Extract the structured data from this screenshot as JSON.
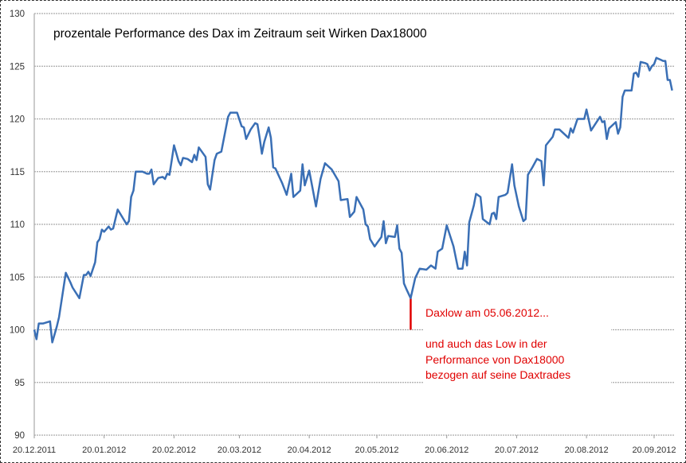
{
  "chart_data": {
    "type": "line",
    "title": "prozentale Performance des Dax im Zeitraum seit Wirken Dax18000",
    "xlabel": "",
    "ylabel": "",
    "x_unit": "days since 20.12.2011",
    "ylim": [
      90,
      130
    ],
    "xlim": [
      0,
      284
    ],
    "yticks": [
      90,
      95,
      100,
      105,
      110,
      115,
      120,
      125,
      130
    ],
    "xticks": [
      {
        "day": 0,
        "label": "20.12.2011"
      },
      {
        "day": 31,
        "label": "20.01.2012"
      },
      {
        "day": 62,
        "label": "20.02.2012"
      },
      {
        "day": 91,
        "label": "20.03.2012"
      },
      {
        "day": 122,
        "label": "20.04.2012"
      },
      {
        "day": 152,
        "label": "20.05.2012"
      },
      {
        "day": 183,
        "label": "20.06.2012"
      },
      {
        "day": 214,
        "label": "20.07.2012"
      },
      {
        "day": 245,
        "label": "20.08.2012"
      },
      {
        "day": 275,
        "label": "20.09.2012"
      }
    ],
    "grid": true,
    "series": [
      {
        "name": "Dax Performance",
        "color": "#3a6fb5",
        "points": [
          [
            0,
            100.0
          ],
          [
            1,
            99.1
          ],
          [
            2,
            100.6
          ],
          [
            4,
            100.6
          ],
          [
            7,
            100.8
          ],
          [
            8,
            98.8
          ],
          [
            10,
            100.3
          ],
          [
            11,
            101.2
          ],
          [
            14,
            105.4
          ],
          [
            16,
            104.5
          ],
          [
            17,
            104.0
          ],
          [
            20,
            103.0
          ],
          [
            22,
            105.2
          ],
          [
            23,
            105.2
          ],
          [
            24,
            105.5
          ],
          [
            25,
            105.1
          ],
          [
            27,
            106.4
          ],
          [
            28,
            108.3
          ],
          [
            29,
            108.6
          ],
          [
            30,
            109.5
          ],
          [
            31,
            109.3
          ],
          [
            33,
            109.8
          ],
          [
            34,
            109.5
          ],
          [
            35,
            109.6
          ],
          [
            37,
            111.4
          ],
          [
            41,
            110.0
          ],
          [
            42,
            110.3
          ],
          [
            43,
            112.6
          ],
          [
            44,
            113.2
          ],
          [
            45,
            115.0
          ],
          [
            48,
            115.0
          ],
          [
            50,
            114.8
          ],
          [
            51,
            114.8
          ],
          [
            52,
            115.2
          ],
          [
            53,
            113.8
          ],
          [
            55,
            114.4
          ],
          [
            57,
            114.5
          ],
          [
            58,
            114.3
          ],
          [
            59,
            114.8
          ],
          [
            60,
            114.7
          ],
          [
            61,
            116.1
          ],
          [
            62,
            117.5
          ],
          [
            64,
            116.0
          ],
          [
            65,
            115.6
          ],
          [
            66,
            116.3
          ],
          [
            68,
            116.2
          ],
          [
            70,
            115.9
          ],
          [
            71,
            116.6
          ],
          [
            72,
            116.1
          ],
          [
            73,
            117.3
          ],
          [
            76,
            116.4
          ],
          [
            77,
            113.8
          ],
          [
            78,
            113.3
          ],
          [
            80,
            116.1
          ],
          [
            81,
            116.7
          ],
          [
            83,
            116.9
          ],
          [
            86,
            120.2
          ],
          [
            87,
            120.6
          ],
          [
            90,
            120.6
          ],
          [
            92,
            119.3
          ],
          [
            93,
            119.2
          ],
          [
            94,
            118.1
          ],
          [
            96,
            119.0
          ],
          [
            98,
            119.6
          ],
          [
            99,
            119.5
          ],
          [
            100,
            118.2
          ],
          [
            101,
            116.7
          ],
          [
            102,
            117.8
          ],
          [
            104,
            119.2
          ],
          [
            105,
            118.2
          ],
          [
            106,
            115.4
          ],
          [
            107,
            115.3
          ],
          [
            110,
            113.9
          ],
          [
            112,
            112.8
          ],
          [
            114,
            114.8
          ],
          [
            115,
            112.6
          ],
          [
            118,
            113.2
          ],
          [
            119,
            115.7
          ],
          [
            120,
            113.7
          ],
          [
            122,
            115.1
          ],
          [
            125,
            111.7
          ],
          [
            127,
            114.3
          ],
          [
            129,
            115.8
          ],
          [
            132,
            115.2
          ],
          [
            135,
            114.1
          ],
          [
            136,
            112.3
          ],
          [
            139,
            112.4
          ],
          [
            140,
            110.7
          ],
          [
            142,
            111.2
          ],
          [
            143,
            112.6
          ],
          [
            146,
            111.4
          ],
          [
            147,
            110.0
          ],
          [
            148,
            109.8
          ],
          [
            149,
            108.6
          ],
          [
            151,
            107.9
          ],
          [
            152,
            108.2
          ],
          [
            154,
            108.8
          ],
          [
            155,
            110.3
          ],
          [
            156,
            108.2
          ],
          [
            157,
            108.9
          ],
          [
            160,
            108.8
          ],
          [
            161,
            109.9
          ],
          [
            162,
            107.7
          ],
          [
            163,
            107.3
          ],
          [
            164,
            104.4
          ],
          [
            165,
            103.9
          ],
          [
            167,
            103.0
          ],
          [
            169,
            104.9
          ],
          [
            171,
            105.8
          ],
          [
            174,
            105.7
          ],
          [
            176,
            106.1
          ],
          [
            178,
            105.8
          ],
          [
            179,
            107.4
          ],
          [
            181,
            107.7
          ],
          [
            183,
            109.9
          ],
          [
            186,
            107.9
          ],
          [
            188,
            105.8
          ],
          [
            190,
            105.8
          ],
          [
            191,
            107.4
          ],
          [
            192,
            106.1
          ],
          [
            193,
            110.2
          ],
          [
            195,
            111.8
          ],
          [
            196,
            112.9
          ],
          [
            198,
            112.6
          ],
          [
            199,
            110.5
          ],
          [
            202,
            110.0
          ],
          [
            203,
            111.0
          ],
          [
            204,
            111.1
          ],
          [
            205,
            110.5
          ],
          [
            206,
            112.6
          ],
          [
            209,
            112.8
          ],
          [
            210,
            113.0
          ],
          [
            212,
            115.7
          ],
          [
            213,
            113.7
          ],
          [
            215,
            111.7
          ],
          [
            217,
            110.3
          ],
          [
            218,
            110.5
          ],
          [
            219,
            114.7
          ],
          [
            221,
            115.4
          ],
          [
            223,
            116.2
          ],
          [
            225,
            116.0
          ],
          [
            226,
            113.7
          ],
          [
            227,
            117.5
          ],
          [
            230,
            118.3
          ],
          [
            231,
            119.0
          ],
          [
            233,
            119.0
          ],
          [
            237,
            118.2
          ],
          [
            238,
            119.1
          ],
          [
            239,
            118.7
          ],
          [
            241,
            120.0
          ],
          [
            244,
            120.0
          ],
          [
            245,
            120.9
          ],
          [
            247,
            118.9
          ],
          [
            251,
            120.2
          ],
          [
            252,
            119.7
          ],
          [
            253,
            119.8
          ],
          [
            254,
            118.1
          ],
          [
            255,
            119.1
          ],
          [
            258,
            119.7
          ],
          [
            259,
            118.6
          ],
          [
            260,
            119.2
          ],
          [
            261,
            122.1
          ],
          [
            262,
            122.7
          ],
          [
            265,
            122.7
          ],
          [
            266,
            124.3
          ],
          [
            267,
            124.4
          ],
          [
            268,
            124.0
          ],
          [
            269,
            125.4
          ],
          [
            271,
            125.3
          ],
          [
            272,
            125.2
          ],
          [
            273,
            124.6
          ],
          [
            274,
            125.0
          ],
          [
            275,
            125.2
          ],
          [
            276,
            125.8
          ],
          [
            278,
            125.6
          ],
          [
            279,
            125.5
          ],
          [
            280,
            125.5
          ],
          [
            281,
            123.7
          ],
          [
            282,
            123.7
          ],
          [
            283,
            122.7
          ]
        ]
      }
    ],
    "annotations": [
      {
        "type": "vline",
        "day": 167,
        "from": 100,
        "to": 103,
        "color": "#e00000"
      },
      {
        "type": "text",
        "color": "#e00000",
        "lines": [
          "Daxlow am 05.06.2012...",
          "",
          "und auch das Low in der",
          "Performance von Dax18000",
          "bezogen auf seine Daxtrades"
        ]
      }
    ]
  }
}
